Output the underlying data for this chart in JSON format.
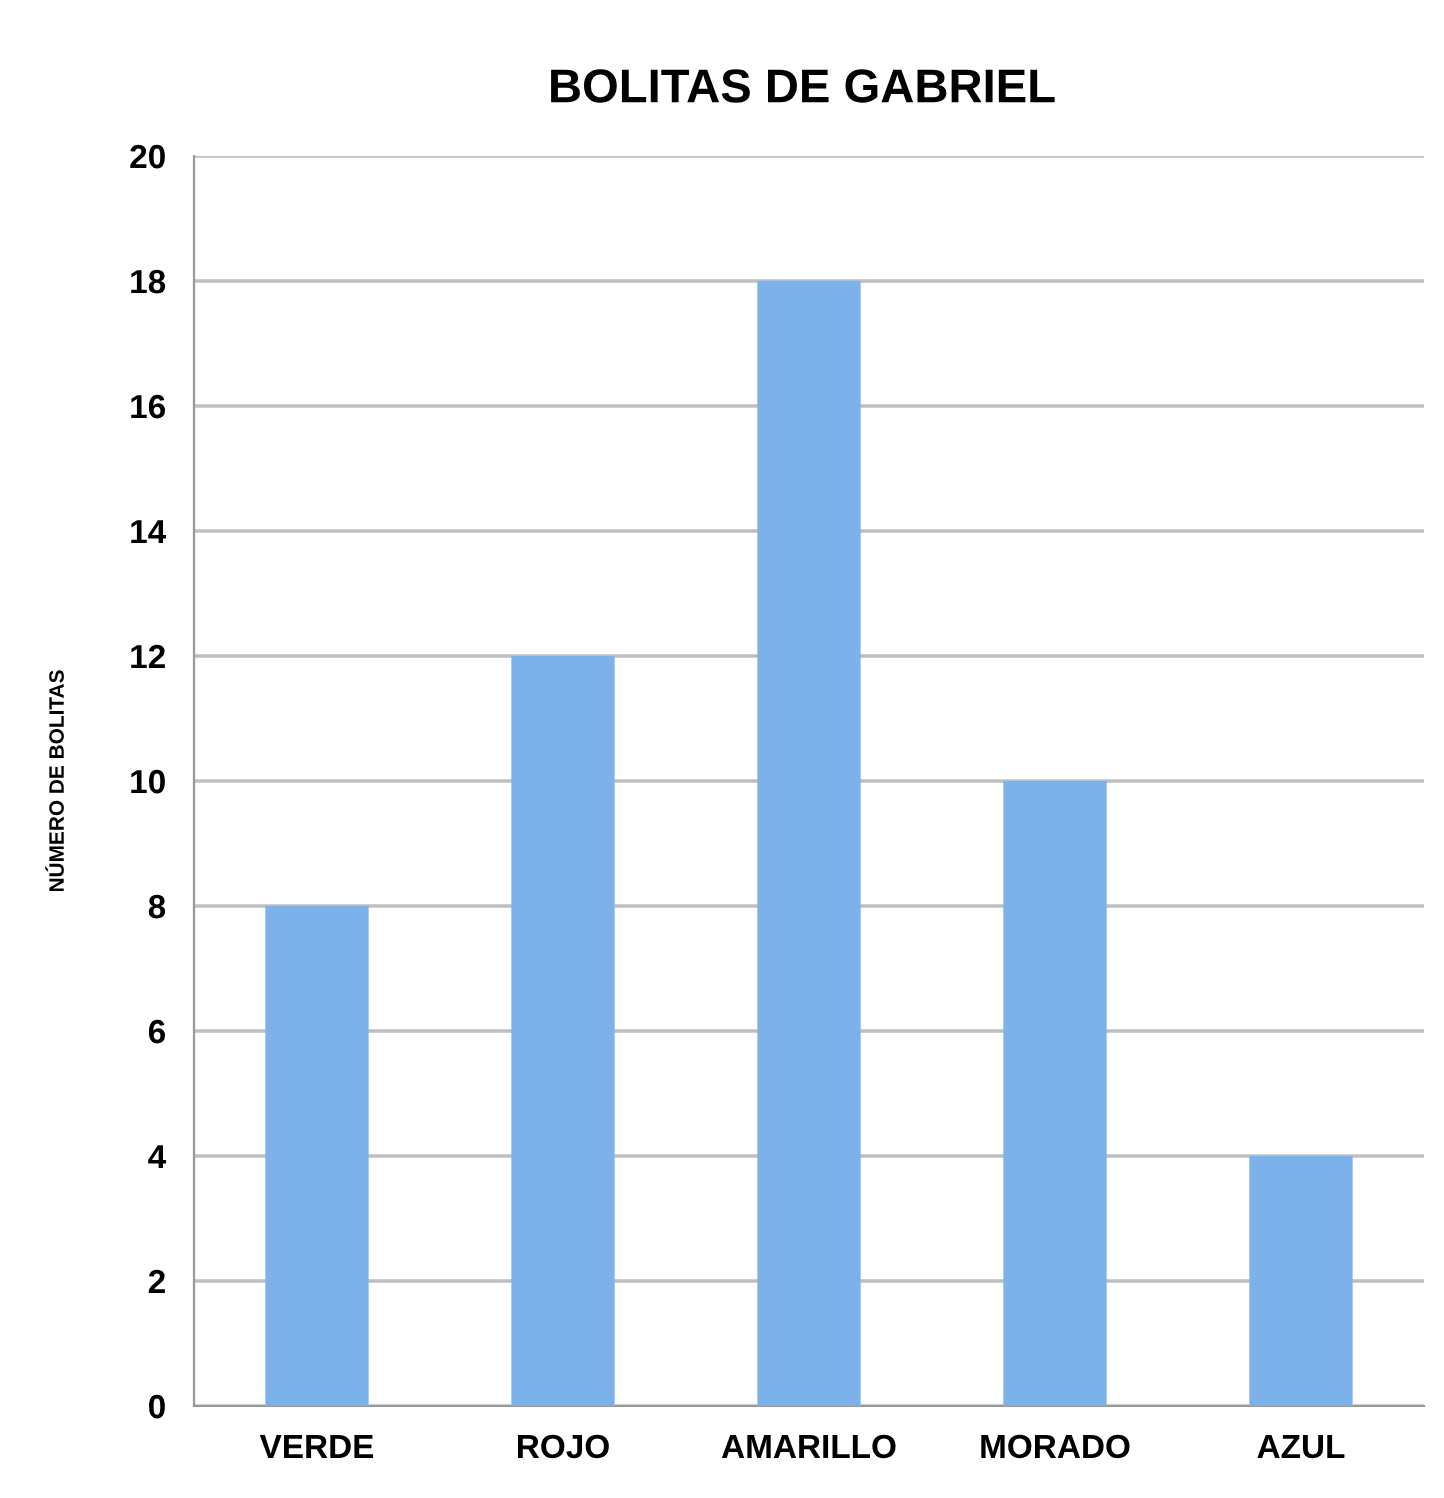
{
  "chart_data": {
    "type": "bar",
    "title": "BOLITAS DE GABRIEL",
    "ylabel": "NÚMERO DE BOLITAS",
    "categories": [
      "VERDE",
      "ROJO",
      "AMARILLO",
      "MORADO",
      "AZUL"
    ],
    "values": [
      8,
      12,
      18,
      10,
      4
    ],
    "color": "#7db1ea",
    "ylim": [
      0,
      20
    ],
    "yticks": [
      0,
      2,
      4,
      6,
      8,
      10,
      12,
      14,
      16,
      18,
      20
    ],
    "grid": "y",
    "legend": false
  }
}
